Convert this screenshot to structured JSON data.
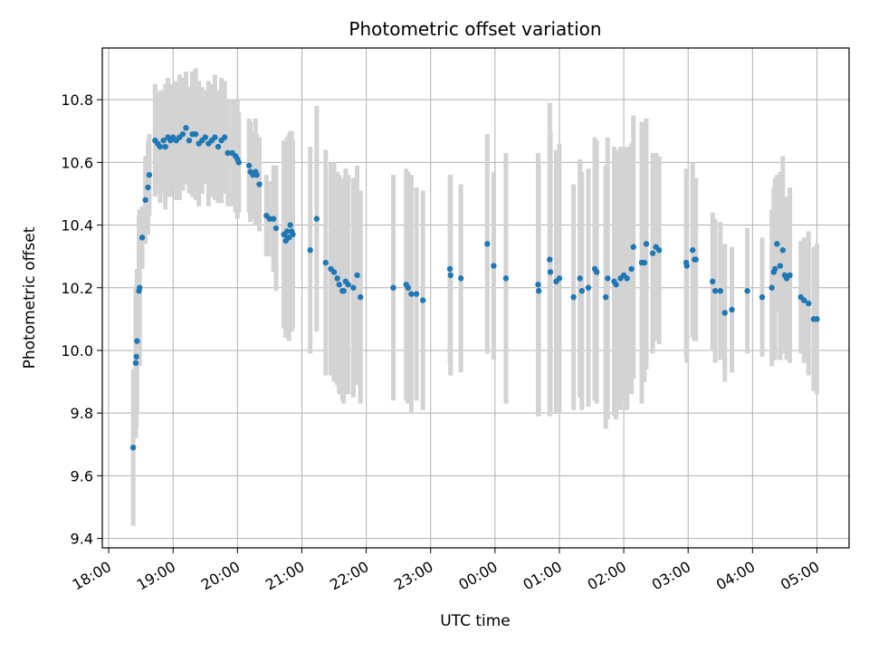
{
  "chart_data": {
    "type": "scatter",
    "title": "Photometric offset variation",
    "xlabel": "UTC time",
    "ylabel": "Photometric offset",
    "grid": true,
    "x_unit": "hours since 18:00 UTC",
    "xlim": [
      -0.1,
      11.5
    ],
    "ylim": [
      9.37,
      10.965
    ],
    "x_ticks": [
      {
        "x": 0,
        "label": "18:00"
      },
      {
        "x": 1,
        "label": "19:00"
      },
      {
        "x": 2,
        "label": "20:00"
      },
      {
        "x": 3,
        "label": "21:00"
      },
      {
        "x": 4,
        "label": "22:00"
      },
      {
        "x": 5,
        "label": "23:00"
      },
      {
        "x": 6,
        "label": "00:00"
      },
      {
        "x": 7,
        "label": "01:00"
      },
      {
        "x": 8,
        "label": "02:00"
      },
      {
        "x": 9,
        "label": "03:00"
      },
      {
        "x": 10,
        "label": "04:00"
      },
      {
        "x": 11,
        "label": "05:00"
      }
    ],
    "y_ticks": [
      {
        "y": 9.4,
        "label": "9.4"
      },
      {
        "y": 9.6,
        "label": "9.6"
      },
      {
        "y": 9.8,
        "label": "9.8"
      },
      {
        "y": 10.0,
        "label": "10.0"
      },
      {
        "y": 10.2,
        "label": "10.2"
      },
      {
        "y": 10.4,
        "label": "10.4"
      },
      {
        "y": 10.6,
        "label": "10.6"
      },
      {
        "y": 10.8,
        "label": "10.8"
      }
    ],
    "point_color": "#1f77b4",
    "errorbar_color": "#d3d3d3",
    "series": [
      {
        "name": "offset",
        "points": [
          [
            0.38,
            9.69,
            0.25
          ],
          [
            0.42,
            9.96,
            0.24
          ],
          [
            0.43,
            9.98,
            0.23
          ],
          [
            0.44,
            10.03,
            0.23
          ],
          [
            0.47,
            10.19,
            0.24
          ],
          [
            0.48,
            10.2,
            0.25
          ],
          [
            0.52,
            10.36,
            0.1
          ],
          [
            0.57,
            10.48,
            0.14
          ],
          [
            0.61,
            10.52,
            0.15
          ],
          [
            0.63,
            10.56,
            0.13
          ],
          [
            0.72,
            10.67,
            0.18
          ],
          [
            0.76,
            10.66,
            0.16
          ],
          [
            0.8,
            10.65,
            0.18
          ],
          [
            0.85,
            10.67,
            0.16
          ],
          [
            0.88,
            10.65,
            0.2
          ],
          [
            0.92,
            10.68,
            0.19
          ],
          [
            0.96,
            10.67,
            0.18
          ],
          [
            1.0,
            10.68,
            0.16
          ],
          [
            1.05,
            10.67,
            0.19
          ],
          [
            1.1,
            10.68,
            0.2
          ],
          [
            1.15,
            10.69,
            0.18
          ],
          [
            1.2,
            10.71,
            0.18
          ],
          [
            1.25,
            10.67,
            0.17
          ],
          [
            1.3,
            10.69,
            0.2
          ],
          [
            1.35,
            10.69,
            0.21
          ],
          [
            1.4,
            10.66,
            0.2
          ],
          [
            1.45,
            10.67,
            0.17
          ],
          [
            1.5,
            10.68,
            0.15
          ],
          [
            1.55,
            10.66,
            0.2
          ],
          [
            1.6,
            10.67,
            0.18
          ],
          [
            1.65,
            10.68,
            0.2
          ],
          [
            1.7,
            10.65,
            0.18
          ],
          [
            1.75,
            10.67,
            0.2
          ],
          [
            1.8,
            10.68,
            0.18
          ],
          [
            1.85,
            10.63,
            0.17
          ],
          [
            1.92,
            10.63,
            0.17
          ],
          [
            1.97,
            10.62,
            0.18
          ],
          [
            2.0,
            10.61,
            0.19
          ],
          [
            2.02,
            10.6,
            0.16
          ],
          [
            2.18,
            10.59,
            0.15
          ],
          [
            2.2,
            10.57,
            0.16
          ],
          [
            2.24,
            10.56,
            0.14
          ],
          [
            2.28,
            10.57,
            0.17
          ],
          [
            2.3,
            10.56,
            0.13
          ],
          [
            2.34,
            10.53,
            0.15
          ],
          [
            2.45,
            10.43,
            0.13
          ],
          [
            2.5,
            10.42,
            0.12
          ],
          [
            2.56,
            10.42,
            0.17
          ],
          [
            2.6,
            10.39,
            0.2
          ],
          [
            2.72,
            10.37,
            0.3
          ],
          [
            2.75,
            10.35,
            0.31
          ],
          [
            2.77,
            10.38,
            0.3
          ],
          [
            2.78,
            10.36,
            0.3
          ],
          [
            2.8,
            10.36,
            0.33
          ],
          [
            2.82,
            10.4,
            0.3
          ],
          [
            2.84,
            10.38,
            0.32
          ],
          [
            2.86,
            10.37,
            0.3
          ],
          [
            3.13,
            10.32,
            0.33
          ],
          [
            3.23,
            10.42,
            0.36
          ],
          [
            3.37,
            10.28,
            0.36
          ],
          [
            3.45,
            10.26,
            0.34
          ],
          [
            3.5,
            10.25,
            0.35
          ],
          [
            3.55,
            10.23,
            0.34
          ],
          [
            3.58,
            10.21,
            0.35
          ],
          [
            3.63,
            10.19,
            0.35
          ],
          [
            3.65,
            10.19,
            0.36
          ],
          [
            3.68,
            10.22,
            0.36
          ],
          [
            3.72,
            10.21,
            0.35
          ],
          [
            3.8,
            10.2,
            0.35
          ],
          [
            3.86,
            10.24,
            0.35
          ],
          [
            3.91,
            10.17,
            0.34
          ],
          [
            4.42,
            10.2,
            0.36
          ],
          [
            4.62,
            10.21,
            0.37
          ],
          [
            4.65,
            10.2,
            0.37
          ],
          [
            4.7,
            10.18,
            0.38
          ],
          [
            4.78,
            10.18,
            0.34
          ],
          [
            4.88,
            10.16,
            0.35
          ],
          [
            5.3,
            10.26,
            0.3
          ],
          [
            5.31,
            10.24,
            0.32
          ],
          [
            5.47,
            10.23,
            0.3
          ],
          [
            5.88,
            10.34,
            0.35
          ],
          [
            5.98,
            10.27,
            0.3
          ],
          [
            6.17,
            10.23,
            0.4
          ],
          [
            6.67,
            10.21,
            0.42
          ],
          [
            6.68,
            10.19,
            0.4
          ],
          [
            6.85,
            10.29,
            0.5
          ],
          [
            6.86,
            10.25,
            0.45
          ],
          [
            6.95,
            10.22,
            0.42
          ],
          [
            7.0,
            10.23,
            0.43
          ],
          [
            7.22,
            10.17,
            0.36
          ],
          [
            7.32,
            10.23,
            0.38
          ],
          [
            7.35,
            10.19,
            0.38
          ],
          [
            7.45,
            10.2,
            0.38
          ],
          [
            7.55,
            10.26,
            0.42
          ],
          [
            7.58,
            10.25,
            0.42
          ],
          [
            7.72,
            10.17,
            0.42
          ],
          [
            7.75,
            10.23,
            0.45
          ],
          [
            7.85,
            10.22,
            0.43
          ],
          [
            7.88,
            10.21,
            0.43
          ],
          [
            7.95,
            10.23,
            0.42
          ],
          [
            8.0,
            10.24,
            0.4
          ],
          [
            8.05,
            10.23,
            0.42
          ],
          [
            8.12,
            10.26,
            0.4
          ],
          [
            8.15,
            10.33,
            0.42
          ],
          [
            8.28,
            10.28,
            0.45
          ],
          [
            8.32,
            10.28,
            0.38
          ],
          [
            8.35,
            10.34,
            0.4
          ],
          [
            8.45,
            10.31,
            0.32
          ],
          [
            8.5,
            10.33,
            0.3
          ],
          [
            8.55,
            10.32,
            0.3
          ],
          [
            8.97,
            10.28,
            0.3
          ],
          [
            8.98,
            10.27,
            0.31
          ],
          [
            9.07,
            10.32,
            0.28
          ],
          [
            9.1,
            10.29,
            0.26
          ],
          [
            9.12,
            10.29,
            0.26
          ],
          [
            9.38,
            10.22,
            0.22
          ],
          [
            9.42,
            10.19,
            0.23
          ],
          [
            9.5,
            10.19,
            0.22
          ],
          [
            9.57,
            10.12,
            0.22
          ],
          [
            9.68,
            10.13,
            0.2
          ],
          [
            9.92,
            10.19,
            0.2
          ],
          [
            10.15,
            10.17,
            0.19
          ],
          [
            10.3,
            10.2,
            0.25
          ],
          [
            10.33,
            10.25,
            0.27
          ],
          [
            10.35,
            10.26,
            0.29
          ],
          [
            10.38,
            10.34,
            0.22
          ],
          [
            10.43,
            10.27,
            0.3
          ],
          [
            10.47,
            10.32,
            0.3
          ],
          [
            10.5,
            10.24,
            0.25
          ],
          [
            10.53,
            10.23,
            0.26
          ],
          [
            10.58,
            10.24,
            0.28
          ],
          [
            10.75,
            10.17,
            0.18
          ],
          [
            10.8,
            10.16,
            0.2
          ],
          [
            10.87,
            10.15,
            0.23
          ],
          [
            10.95,
            10.1,
            0.23
          ],
          [
            11.0,
            10.1,
            0.24
          ]
        ]
      }
    ]
  }
}
